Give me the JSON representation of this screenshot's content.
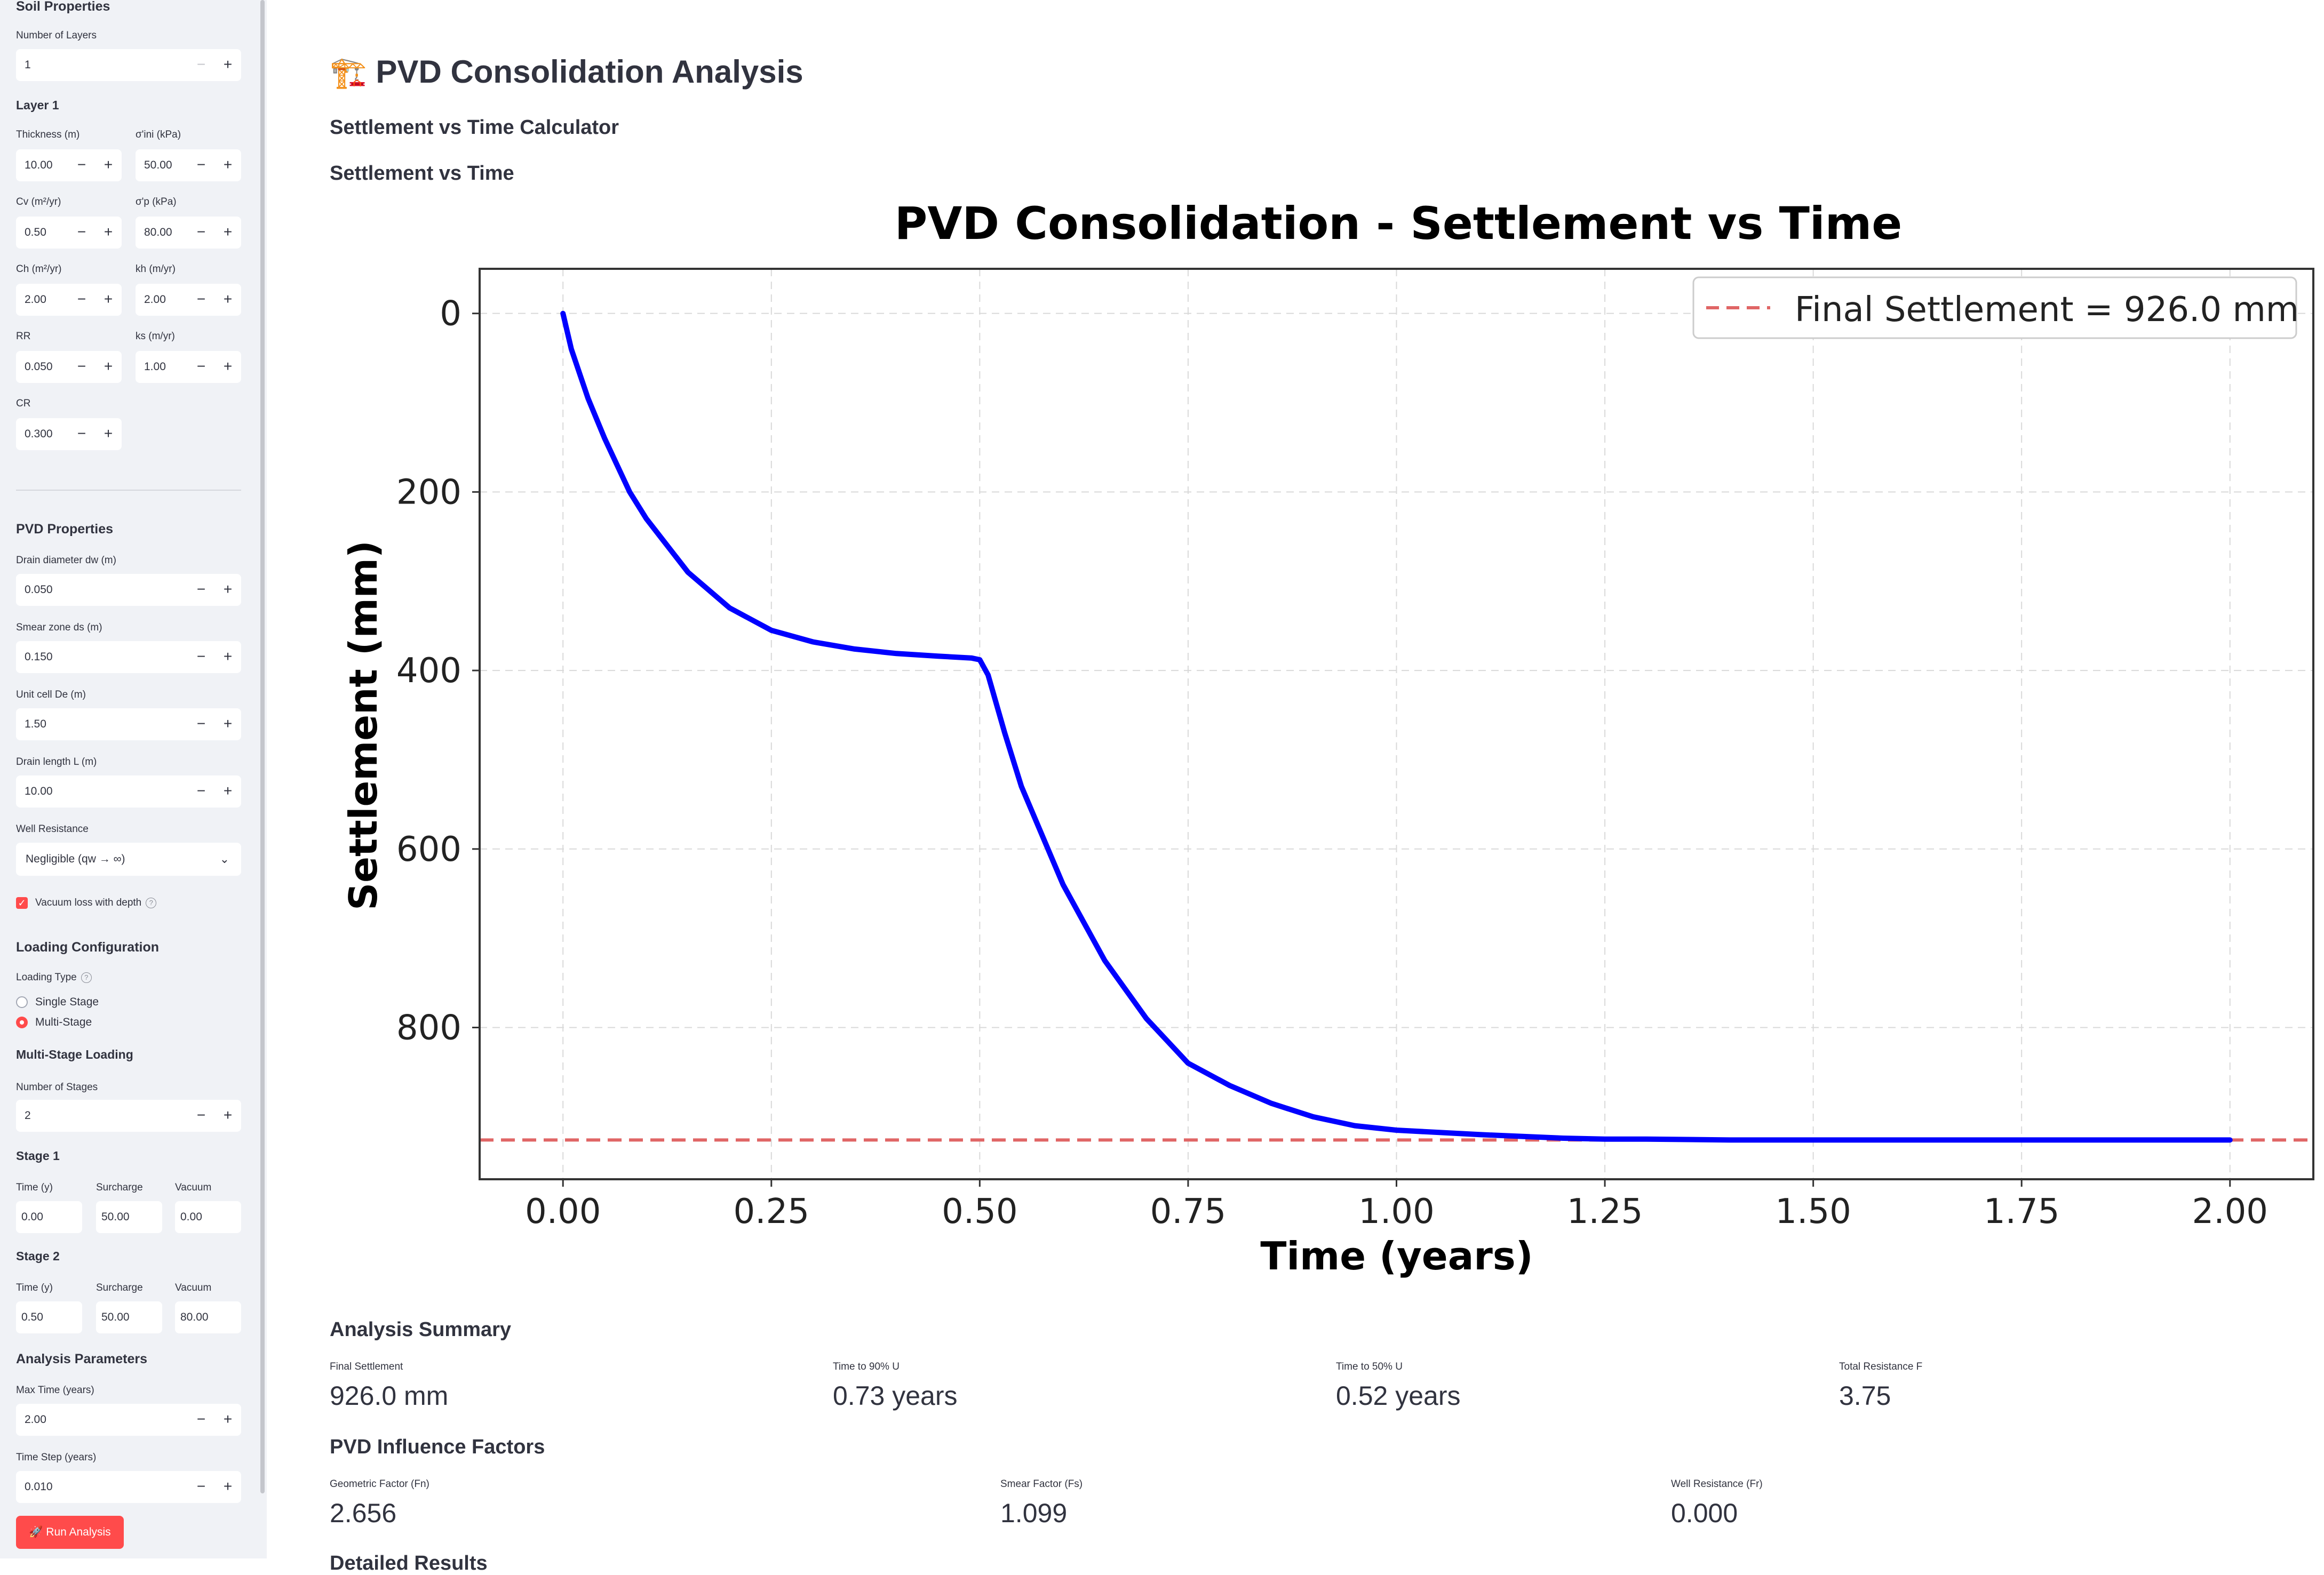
{
  "sidebar": {
    "soil_heading": "Soil Properties",
    "num_layers_label": "Number of Layers",
    "num_layers_value": "1",
    "layer1_heading": "Layer 1",
    "thickness_label": "Thickness (m)",
    "thickness_value": "10.00",
    "sigma_ini_label": "σ'ini (kPa)",
    "sigma_ini_value": "50.00",
    "cv_label": "Cv (m²/yr)",
    "cv_value": "0.50",
    "sigma_p_label": "σ'p (kPa)",
    "sigma_p_value": "80.00",
    "ch_label": "Ch (m²/yr)",
    "ch_value": "2.00",
    "kh_label": "kh (m/yr)",
    "kh_value": "2.00",
    "rr_label": "RR",
    "rr_value": "0.050",
    "ks_label": "ks (m/yr)",
    "ks_value": "1.00",
    "cr_label": "CR",
    "cr_value": "0.300",
    "pvd_heading": "PVD Properties",
    "dw_label": "Drain diameter dw (m)",
    "dw_value": "0.050",
    "ds_label": "Smear zone ds (m)",
    "ds_value": "0.150",
    "de_label": "Unit cell De (m)",
    "de_value": "1.50",
    "L_label": "Drain length L (m)",
    "L_value": "10.00",
    "well_label": "Well Resistance",
    "well_value": "Negligible (qw → ∞)",
    "vacuum_loss_label": "Vacuum loss with depth",
    "loading_heading": "Loading Configuration",
    "loading_type_label": "Loading Type",
    "single_stage_label": "Single Stage",
    "multi_stage_label": "Multi-Stage",
    "multistage_heading": "Multi-Stage Loading",
    "num_stages_label": "Number of Stages",
    "num_stages_value": "2",
    "stage1_heading": "Stage 1",
    "stage2_heading": "Stage 2",
    "time_label": "Time (y)",
    "surcharge_label": "Surcharge",
    "vacuum_label": "Vacuum",
    "stage1": {
      "time": "0.00",
      "surcharge": "50.00",
      "vacuum": "0.00"
    },
    "stage2": {
      "time": "0.50",
      "surcharge": "50.00",
      "vacuum": "80.00"
    },
    "analysis_heading": "Analysis Parameters",
    "max_time_label": "Max Time (years)",
    "max_time_value": "2.00",
    "time_step_label": "Time Step (years)",
    "time_step_value": "0.010",
    "run_button": "🚀 Run Analysis",
    "help_icon": "?",
    "check_icon": "✓",
    "chevron_icon": "⌄"
  },
  "main": {
    "title_icon": "🏗️",
    "title": "PVD Consolidation Analysis",
    "subtitle": "Settlement vs Time Calculator",
    "section_chart": "Settlement vs Time",
    "summary_heading": "Analysis Summary",
    "summary": [
      {
        "label": "Final Settlement",
        "value": "926.0 mm"
      },
      {
        "label": "Time to 90% U",
        "value": "0.73 years"
      },
      {
        "label": "Time to 50% U",
        "value": "0.52 years"
      },
      {
        "label": "Total Resistance F",
        "value": "3.75"
      }
    ],
    "factors_heading": "PVD Influence Factors",
    "factors": [
      {
        "label": "Geometric Factor (Fn)",
        "value": "2.656"
      },
      {
        "label": "Smear Factor (Fs)",
        "value": "1.099"
      },
      {
        "label": "Well Resistance (Fr)",
        "value": "0.000"
      }
    ],
    "clipped_heading": "Detailed Results"
  },
  "chart_data": {
    "type": "line",
    "title": "PVD Consolidation - Settlement vs Time",
    "xlabel": "Time (years)",
    "ylabel": "Settlement (mm)",
    "xlim": [
      -0.1,
      2.1
    ],
    "ylim": [
      -50,
      970
    ],
    "y_inverted": true,
    "grid": true,
    "x_ticks": [
      0.0,
      0.25,
      0.5,
      0.75,
      1.0,
      1.25,
      1.5,
      1.75,
      2.0
    ],
    "x_tick_labels": [
      "0.00",
      "0.25",
      "0.50",
      "0.75",
      "1.00",
      "1.25",
      "1.50",
      "1.75",
      "2.00"
    ],
    "y_ticks": [
      0,
      200,
      400,
      600,
      800
    ],
    "y_tick_labels": [
      "0",
      "200",
      "400",
      "600",
      "800"
    ],
    "legend_position": "top-right",
    "legend_label": "Final Settlement = 926.0 mm",
    "series_color": "#0000ff",
    "reference_color": "#e06666",
    "reference_line": 926.0,
    "x": [
      0.0,
      0.01,
      0.03,
      0.05,
      0.08,
      0.1,
      0.15,
      0.2,
      0.25,
      0.3,
      0.35,
      0.4,
      0.45,
      0.49,
      0.5,
      0.51,
      0.53,
      0.55,
      0.6,
      0.65,
      0.7,
      0.73,
      0.75,
      0.8,
      0.85,
      0.9,
      0.95,
      1.0,
      1.1,
      1.2,
      1.25,
      1.3,
      1.4,
      1.5,
      1.6,
      1.7,
      1.8,
      1.9,
      2.0
    ],
    "y": [
      0,
      40,
      95,
      140,
      200,
      230,
      290,
      330,
      355,
      368,
      376,
      381,
      384,
      386,
      388,
      405,
      470,
      530,
      640,
      725,
      790,
      820,
      840,
      865,
      885,
      900,
      910,
      915,
      920,
      924,
      925,
      925,
      926,
      926,
      926,
      926,
      926,
      926,
      926
    ]
  }
}
